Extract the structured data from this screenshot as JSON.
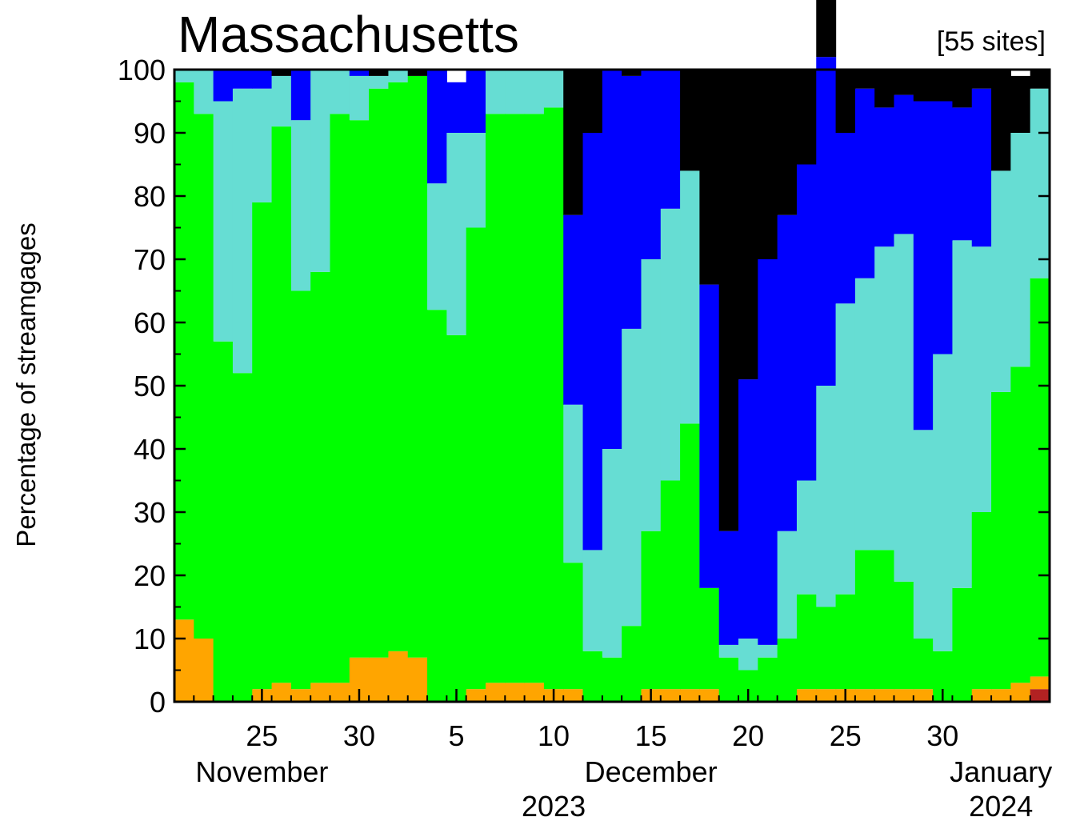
{
  "chart_data": {
    "type": "area",
    "title": "Massachusetts",
    "subtitle": "[55 sites]",
    "ylabel": "Percentage of streamgages",
    "ylim": [
      0,
      100
    ],
    "y_ticks": [
      0,
      10,
      20,
      30,
      40,
      50,
      60,
      70,
      80,
      90,
      100
    ],
    "x_range": [
      "2023-11-21",
      "2024-01-04"
    ],
    "x_tick_labels": [
      {
        "date": "2023-11-25",
        "label": "25"
      },
      {
        "date": "2023-11-30",
        "label": "30"
      },
      {
        "date": "2023-12-05",
        "label": "5"
      },
      {
        "date": "2023-12-10",
        "label": "10"
      },
      {
        "date": "2023-12-15",
        "label": "15"
      },
      {
        "date": "2023-12-20",
        "label": "20"
      },
      {
        "date": "2023-12-25",
        "label": "25"
      },
      {
        "date": "2023-12-30",
        "label": "30"
      }
    ],
    "month_labels": [
      {
        "date": "2023-11-25",
        "label": "November"
      },
      {
        "date": "2023-12-15",
        "label": "December"
      },
      {
        "date": "2024-01-02",
        "label": "January"
      }
    ],
    "year_labels": [
      {
        "date": "2023-12-10",
        "label": "2023"
      },
      {
        "date": "2024-01-02",
        "label": "2024"
      }
    ],
    "grid": false,
    "stacking": "percent",
    "dates": [
      "2023-11-21",
      "2023-11-22",
      "2023-11-23",
      "2023-11-24",
      "2023-11-25",
      "2023-11-26",
      "2023-11-27",
      "2023-11-28",
      "2023-11-29",
      "2023-11-30",
      "2023-12-01",
      "2023-12-02",
      "2023-12-03",
      "2023-12-04",
      "2023-12-05",
      "2023-12-06",
      "2023-12-07",
      "2023-12-08",
      "2023-12-09",
      "2023-12-10",
      "2023-12-11",
      "2023-12-12",
      "2023-12-13",
      "2023-12-14",
      "2023-12-15",
      "2023-12-16",
      "2023-12-17",
      "2023-12-18",
      "2023-12-19",
      "2023-12-20",
      "2023-12-21",
      "2023-12-22",
      "2023-12-23",
      "2023-12-24",
      "2023-12-25",
      "2023-12-26",
      "2023-12-27",
      "2023-12-28",
      "2023-12-29",
      "2023-12-30",
      "2023-12-31",
      "2024-01-01",
      "2024-01-02",
      "2024-01-03",
      "2024-01-04"
    ],
    "series": [
      {
        "color": "#b22222",
        "values": [
          0,
          0,
          0,
          0,
          0,
          0,
          0,
          0,
          0,
          0,
          0,
          0,
          0,
          0,
          0,
          0,
          0,
          0,
          0,
          0,
          0,
          0,
          0,
          0,
          0,
          0,
          0,
          0,
          0,
          0,
          0,
          0,
          0,
          0,
          0,
          0,
          0,
          0,
          0,
          0,
          0,
          0,
          0,
          0,
          2
        ]
      },
      {
        "color": "#ffa500",
        "values": [
          13,
          10,
          0,
          0,
          2,
          3,
          2,
          3,
          3,
          7,
          7,
          8,
          7,
          0,
          0,
          2,
          3,
          3,
          3,
          2,
          2,
          0,
          0,
          0,
          2,
          2,
          2,
          2,
          0,
          0,
          0,
          0,
          2,
          2,
          2,
          2,
          2,
          2,
          2,
          0,
          0,
          2,
          2,
          3,
          2
        ]
      },
      {
        "color": "#00ff00",
        "values": [
          85,
          83,
          57,
          52,
          77,
          88,
          63,
          65,
          90,
          85,
          90,
          90,
          92,
          62,
          58,
          73,
          90,
          90,
          90,
          92,
          20,
          8,
          7,
          12,
          25,
          33,
          42,
          16,
          7,
          5,
          7,
          10,
          15,
          13,
          15,
          22,
          22,
          17,
          8,
          8,
          18,
          28,
          47,
          50,
          63
        ]
      },
      {
        "color": "#66ddd3",
        "values": [
          2,
          7,
          38,
          45,
          18,
          8,
          27,
          32,
          7,
          7,
          2,
          2,
          0,
          20,
          32,
          15,
          7,
          7,
          7,
          6,
          25,
          16,
          33,
          47,
          43,
          43,
          40,
          0,
          2,
          5,
          2,
          17,
          18,
          35,
          46,
          43,
          48,
          55,
          33,
          47,
          55,
          42,
          35,
          37,
          30
        ]
      },
      {
        "color": "#0000ff",
        "values": [
          0,
          0,
          5,
          3,
          3,
          0,
          8,
          0,
          0,
          1,
          0,
          0,
          0,
          18,
          8,
          10,
          0,
          0,
          0,
          0,
          30,
          66,
          60,
          40,
          30,
          22,
          0,
          48,
          18,
          41,
          61,
          50,
          50,
          52,
          27,
          30,
          22,
          22,
          52,
          40,
          21,
          25,
          0,
          0,
          0
        ]
      },
      {
        "color": "#000000",
        "values": [
          0,
          0,
          0,
          0,
          0,
          1,
          0,
          0,
          0,
          0,
          1,
          0,
          1,
          0,
          0,
          0,
          0,
          0,
          0,
          0,
          23,
          10,
          0,
          1,
          0,
          0,
          16,
          34,
          73,
          49,
          30,
          23,
          15,
          13,
          10,
          3,
          6,
          4,
          5,
          5,
          6,
          3,
          16,
          9,
          3
        ]
      }
    ]
  }
}
